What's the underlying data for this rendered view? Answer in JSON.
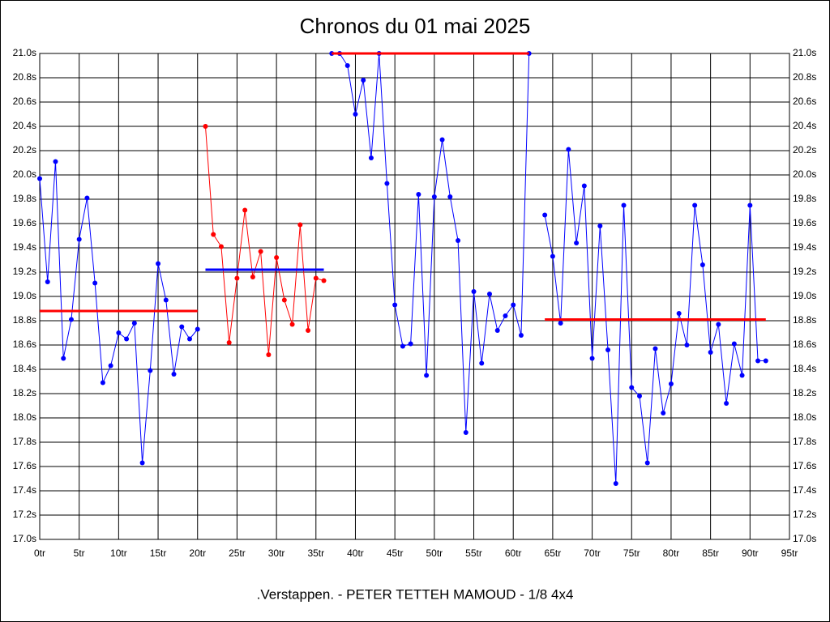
{
  "chart_data": {
    "type": "line",
    "title": "Chronos du 01 mai 2025",
    "subtitle": ".Verstappen. - PETER TETTEH MAMOUD - 1/8 4x4",
    "xlim": [
      0,
      95
    ],
    "ylim": [
      17.0,
      21.0
    ],
    "grid": true,
    "xticks": [
      {
        "value": 0,
        "label": "0tr"
      },
      {
        "value": 5,
        "label": "5tr"
      },
      {
        "value": 10,
        "label": "10tr"
      },
      {
        "value": 15,
        "label": "15tr"
      },
      {
        "value": 20,
        "label": "20tr"
      },
      {
        "value": 25,
        "label": "25tr"
      },
      {
        "value": 30,
        "label": "30tr"
      },
      {
        "value": 35,
        "label": "35tr"
      },
      {
        "value": 40,
        "label": "40tr"
      },
      {
        "value": 45,
        "label": "45tr"
      },
      {
        "value": 50,
        "label": "50tr"
      },
      {
        "value": 55,
        "label": "55tr"
      },
      {
        "value": 60,
        "label": "60tr"
      },
      {
        "value": 65,
        "label": "65tr"
      },
      {
        "value": 70,
        "label": "70tr"
      },
      {
        "value": 75,
        "label": "75tr"
      },
      {
        "value": 80,
        "label": "80tr"
      },
      {
        "value": 85,
        "label": "85tr"
      },
      {
        "value": 90,
        "label": "90tr"
      },
      {
        "value": 95,
        "label": "95tr"
      }
    ],
    "yticks": [
      {
        "value": 17.0,
        "label": "17.0s"
      },
      {
        "value": 17.2,
        "label": "17.2s"
      },
      {
        "value": 17.4,
        "label": "17.4s"
      },
      {
        "value": 17.6,
        "label": "17.6s"
      },
      {
        "value": 17.8,
        "label": "17.8s"
      },
      {
        "value": 18.0,
        "label": "18.0s"
      },
      {
        "value": 18.2,
        "label": "18.2s"
      },
      {
        "value": 18.4,
        "label": "18.4s"
      },
      {
        "value": 18.6,
        "label": "18.6s"
      },
      {
        "value": 18.8,
        "label": "18.8s"
      },
      {
        "value": 19.0,
        "label": "19.0s"
      },
      {
        "value": 19.2,
        "label": "19.2s"
      },
      {
        "value": 19.4,
        "label": "19.4s"
      },
      {
        "value": 19.6,
        "label": "19.6s"
      },
      {
        "value": 19.8,
        "label": "19.8s"
      },
      {
        "value": 20.0,
        "label": "20.0s"
      },
      {
        "value": 20.2,
        "label": "20.2s"
      },
      {
        "value": 20.4,
        "label": "20.4s"
      },
      {
        "value": 20.6,
        "label": "20.6s"
      },
      {
        "value": 20.8,
        "label": "20.8s"
      },
      {
        "value": 21.0,
        "label": "21.0s"
      }
    ],
    "series": [
      {
        "color": "#0000ff",
        "x": [
          0,
          1,
          2,
          3,
          4,
          5,
          6,
          7,
          8,
          9,
          10,
          11,
          12,
          13,
          14,
          15,
          16,
          17,
          18,
          19,
          20
        ],
        "values": [
          19.97,
          19.12,
          20.11,
          18.49,
          18.81,
          19.47,
          19.81,
          19.11,
          18.29,
          18.43,
          18.7,
          18.65,
          18.78,
          17.63,
          18.39,
          19.27,
          18.97,
          18.36,
          18.75,
          18.65,
          18.73
        ]
      },
      {
        "color": "#ff0000",
        "x": [
          21,
          22,
          23,
          24,
          25,
          26,
          27,
          28,
          29,
          30,
          31,
          32,
          33,
          34,
          35,
          36
        ],
        "values": [
          20.4,
          19.51,
          19.41,
          18.62,
          19.15,
          19.71,
          19.16,
          19.37,
          18.52,
          19.32,
          18.97,
          18.77,
          19.59,
          18.72,
          19.15,
          19.13
        ]
      },
      {
        "color": "#0000ff",
        "x": [
          37,
          38,
          39,
          40,
          41,
          42,
          43,
          44,
          45,
          46,
          47,
          48,
          49,
          50,
          51,
          52,
          53,
          54,
          55,
          56,
          57,
          58,
          59,
          60,
          61,
          62
        ],
        "values": [
          21.0,
          21.0,
          20.9,
          20.5,
          20.78,
          20.14,
          21.0,
          19.93,
          18.93,
          18.59,
          18.61,
          19.84,
          18.35,
          19.82,
          20.29,
          19.82,
          19.46,
          17.88,
          19.04,
          18.45,
          19.02,
          18.72,
          18.84,
          18.93,
          18.68,
          21.0
        ]
      },
      {
        "color": "#0000ff",
        "x": [
          64,
          65,
          66,
          67,
          68,
          69,
          70,
          71,
          72,
          73,
          74,
          75,
          76,
          77,
          78,
          79,
          80,
          81,
          82,
          83,
          84,
          85,
          86,
          87,
          88,
          89,
          90,
          91,
          92
        ],
        "values": [
          19.67,
          19.33,
          18.78,
          20.21,
          19.44,
          19.91,
          18.49,
          19.58,
          18.56,
          17.46,
          19.75,
          18.25,
          18.18,
          17.63,
          18.57,
          18.04,
          18.28,
          18.86,
          18.6,
          19.75,
          19.26,
          18.54,
          18.77,
          18.12,
          18.61,
          18.35,
          19.75,
          18.47,
          18.47
        ]
      }
    ],
    "mean_lines": [
      {
        "value": 18.88,
        "x": [
          0,
          20
        ],
        "color": "#ff0000"
      },
      {
        "value": 19.22,
        "x": [
          21,
          36
        ],
        "color": "#0000ff"
      },
      {
        "value": 21.0,
        "x": [
          37,
          62
        ],
        "color": "#ff0000"
      },
      {
        "value": 18.81,
        "x": [
          64,
          92
        ],
        "color": "#ff0000"
      }
    ]
  }
}
